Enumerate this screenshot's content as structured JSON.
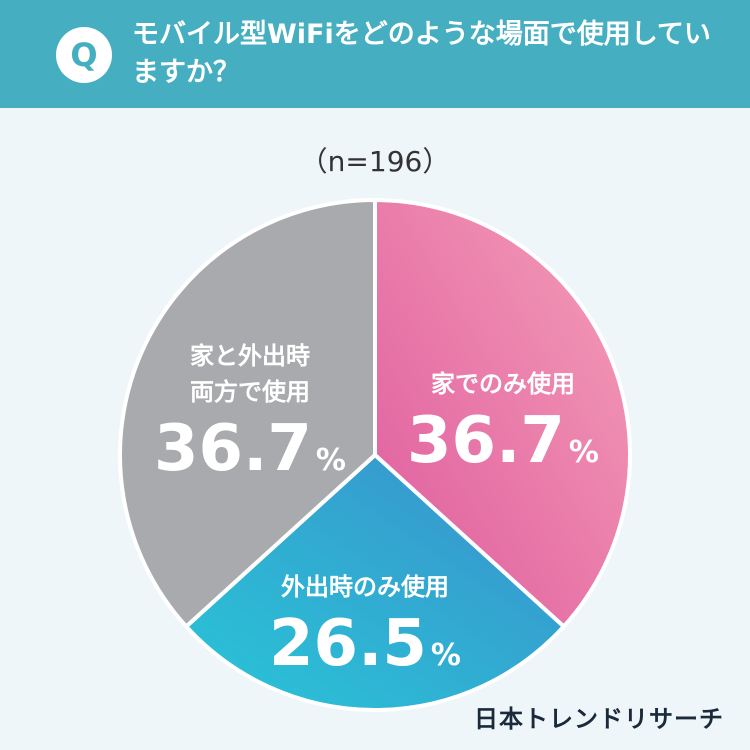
{
  "header": {
    "badge": "Q",
    "question": "モバイル型WiFiをどのような場面で使用していますか？"
  },
  "sample_size": "（n=196）",
  "brand": "日本トレンドリサーチ",
  "chart_data": {
    "type": "pie",
    "title": "モバイル型WiFiをどのような場面で使用していますか？",
    "n": 196,
    "slices": [
      {
        "label": "家でのみ使用",
        "value": 36.7,
        "display": "36.7",
        "unit": "%",
        "color_a": "#f59fb8",
        "color_b": "#de5a9d"
      },
      {
        "label": "外出時のみ使用",
        "value": 26.5,
        "display": "26.5",
        "unit": "%",
        "color_a": "#28c6d7",
        "color_b": "#3b8fcc"
      },
      {
        "label": "家と外出時両方で使用",
        "label_lines": [
          "家と外出時",
          "両方で使用"
        ],
        "value": 36.7,
        "display": "36.7",
        "unit": "%",
        "color_a": "#a9aaad",
        "color_b": "#a9aaad"
      }
    ]
  }
}
